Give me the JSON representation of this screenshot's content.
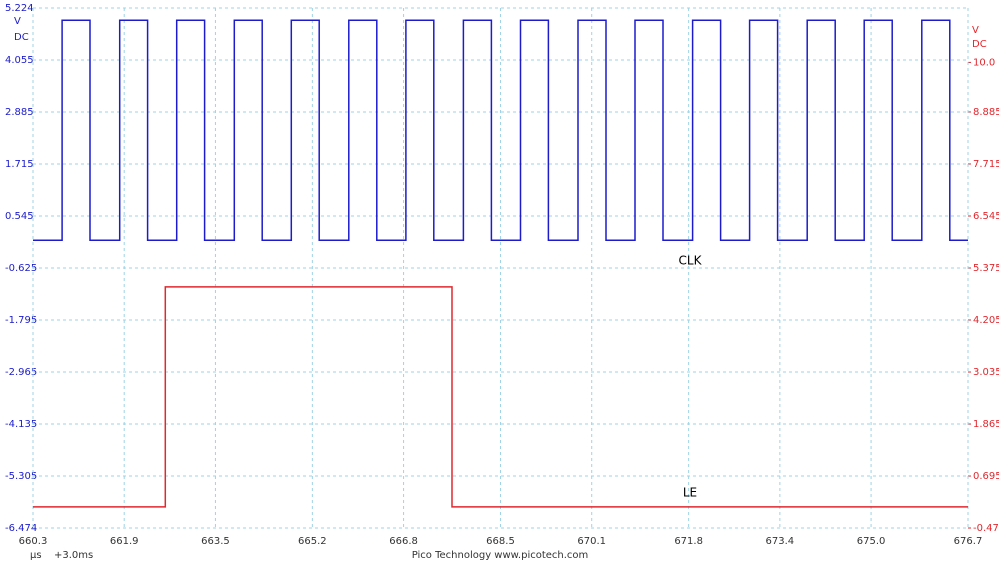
{
  "chart_data": {
    "type": "line",
    "ylabel": [
      "V",
      "DC"
    ],
    "y2label": [
      "V",
      "DC"
    ],
    "x_unit": "μs",
    "x_offset": "+3.0ms",
    "footer": "Pico Technology  www.picotech.com",
    "grid": true,
    "xlim": [
      660.3,
      676.7
    ],
    "xticks": [
      660.3,
      661.9,
      663.5,
      665.2,
      666.8,
      668.5,
      670.1,
      671.8,
      673.4,
      {
        "value": 675,
        "label": "675.0"
      },
      676.7
    ],
    "ylim": [
      -6.474,
      5.224
    ],
    "yticks": [
      5.224,
      4.055,
      2.885,
      1.715,
      0.545,
      -0.625,
      -1.795,
      -2.965,
      -4.135,
      -5.305,
      -6.474
    ],
    "y2lim": [
      -0.474,
      11.224
    ],
    "y2ticks": [
      {
        "value": 10,
        "label": "10.0"
      },
      8.885,
      7.715,
      6.545,
      5.375,
      4.205,
      3.035,
      1.865,
      0.695,
      -0.474
    ],
    "series": [
      {
        "name": "CLK",
        "color": "#1c1ccc",
        "axis": "y",
        "x": [
          660.3,
          660.81,
          660.81,
          661.3,
          661.3,
          661.82,
          661.82,
          662.31,
          662.31,
          662.82,
          662.82,
          663.31,
          663.31,
          663.83,
          663.83,
          664.32,
          664.32,
          664.83,
          664.83,
          665.32,
          665.32,
          665.84,
          665.84,
          666.33,
          666.33,
          666.84,
          666.84,
          667.33,
          667.33,
          667.85,
          667.85,
          668.34,
          668.34,
          668.85,
          668.85,
          669.34,
          669.34,
          669.86,
          669.86,
          670.35,
          670.35,
          670.86,
          670.86,
          671.35,
          671.35,
          671.87,
          671.87,
          672.36,
          672.36,
          672.87,
          672.87,
          673.36,
          673.36,
          673.88,
          673.88,
          674.37,
          674.37,
          674.88,
          674.88,
          675.37,
          675.37,
          675.89,
          675.89,
          676.38,
          676.38,
          676.7
        ],
        "values": [
          0,
          0,
          4.95,
          4.95,
          0,
          0,
          4.95,
          4.95,
          0,
          0,
          4.95,
          4.95,
          0,
          0,
          4.95,
          4.95,
          0,
          0,
          4.95,
          4.95,
          0,
          0,
          4.95,
          4.95,
          0,
          0,
          4.95,
          4.95,
          0,
          0,
          4.95,
          4.95,
          0,
          0,
          4.95,
          4.95,
          0,
          0,
          4.95,
          4.95,
          0,
          0,
          4.95,
          4.95,
          0,
          0,
          4.95,
          4.95,
          0,
          0,
          4.95,
          4.95,
          0,
          0,
          4.95,
          4.95,
          0,
          0,
          4.95,
          4.95,
          0,
          0,
          4.95,
          4.95,
          0,
          0
        ]
      },
      {
        "name": "LE",
        "color": "#e0282e",
        "axis": "y2",
        "x": [
          660.3,
          662.62,
          662.62,
          667.65,
          667.65,
          676.7
        ],
        "values": [
          0,
          0,
          4.95,
          4.95,
          0,
          0
        ]
      }
    ]
  }
}
